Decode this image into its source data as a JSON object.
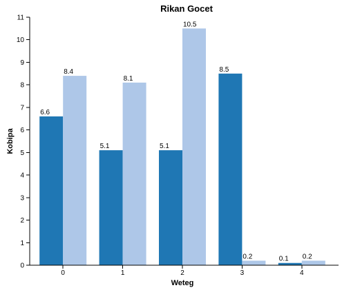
{
  "chart_data": {
    "type": "bar",
    "title": "Rikan Gocet",
    "xlabel": "Weteg",
    "ylabel": "Kobipa",
    "categories": [
      "0",
      "1",
      "2",
      "3",
      "4"
    ],
    "series": [
      {
        "values": [
          6.6,
          5.1,
          5.1,
          8.5,
          0.1
        ],
        "color": "#1f77b4"
      },
      {
        "values": [
          8.4,
          8.1,
          10.5,
          0.2,
          0.2
        ],
        "color": "#aec7e8"
      }
    ],
    "data_labels": [
      [
        "6.6",
        "5.1",
        "5.1",
        "8.5",
        "0.1"
      ],
      [
        "8.4",
        "8.1",
        "10.5",
        "0.2",
        "0.2"
      ]
    ],
    "ylim": [
      0,
      11
    ],
    "y_ticks": [
      "0",
      "1",
      "2",
      "3",
      "4",
      "5",
      "6",
      "7",
      "8",
      "9",
      "10",
      "11"
    ],
    "grid": false,
    "legend": "none"
  }
}
